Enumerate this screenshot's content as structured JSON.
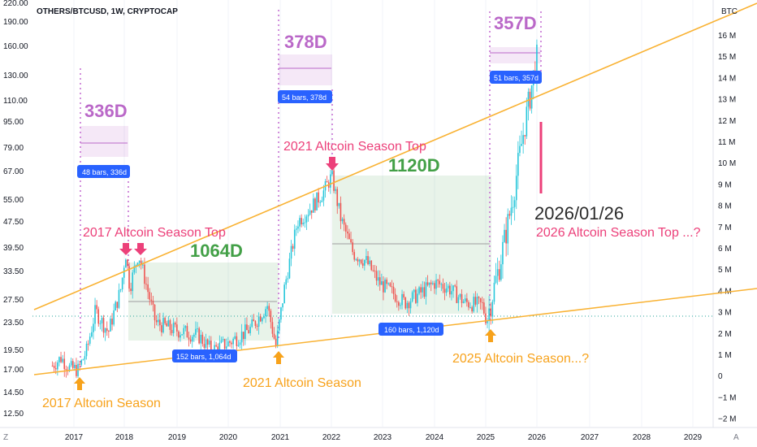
{
  "header": {
    "symbol_line": "OTHERS/BTCUSD, 1W, CRYPTOCAP",
    "right_unit": "BTC"
  },
  "footer": {
    "left_glyph": "Z",
    "right_glyph": "A"
  },
  "colors": {
    "up": "#26c6da",
    "down": "#ef5350",
    "pink": "#ec407a",
    "purple": "#ba68c8",
    "green": "#43a047",
    "orange": "#f7a21b",
    "trend": "#f9b233",
    "pill": "#2962ff"
  },
  "chart_data": {
    "type": "candlestick",
    "title": "OTHERS/BTCUSD, 1W, CRYPTOCAP",
    "y_scale": "log",
    "y_left_ticks": [
      "220.00",
      "190.00",
      "160.00",
      "130.00",
      "110.00",
      "95.00",
      "79.00",
      "67.00",
      "55.00",
      "47.50",
      "39.50",
      "33.50",
      "27.50",
      "23.50",
      "19.50",
      "17.00",
      "14.50",
      "12.50"
    ],
    "y_right_unit": "BTC",
    "y_right_ticks": [
      "16 M",
      "15 M",
      "14 M",
      "13 M",
      "12 M",
      "11 M",
      "10 M",
      "9 M",
      "8 M",
      "7 M",
      "6 M",
      "5 M",
      "4 M",
      "3 M",
      "2 M",
      "1 M",
      "0",
      "−1 M",
      "−2 M"
    ],
    "x_ticks": [
      "2017",
      "2018",
      "2019",
      "2020",
      "2021",
      "2022",
      "2023",
      "2024",
      "2025",
      "2026",
      "2027",
      "2028",
      "2029"
    ],
    "price_path": [
      [
        "2016-08",
        17.5
      ],
      [
        "2016-10",
        18.5
      ],
      [
        "2016-12",
        17.2
      ],
      [
        "2017-02",
        17.0
      ],
      [
        "2017-04",
        19.5
      ],
      [
        "2017-06",
        25.5
      ],
      [
        "2017-09",
        22.0
      ],
      [
        "2017-12",
        30.0
      ],
      [
        "2018-01",
        38.5
      ],
      [
        "2018-02",
        30.0
      ],
      [
        "2018-04",
        38.0
      ],
      [
        "2018-06",
        30.0
      ],
      [
        "2018-08",
        23.5
      ],
      [
        "2018-12",
        22.5
      ],
      [
        "2019-03",
        22.0
      ],
      [
        "2019-06",
        21.5
      ],
      [
        "2019-09",
        19.5
      ],
      [
        "2020-01",
        20.5
      ],
      [
        "2020-06",
        22.5
      ],
      [
        "2020-10",
        26.5
      ],
      [
        "2020-12",
        20.0
      ],
      [
        "2021-02",
        30.0
      ],
      [
        "2021-05",
        47.5
      ],
      [
        "2021-08",
        52.0
      ],
      [
        "2021-11",
        58.0
      ],
      [
        "2022-01",
        65.0
      ],
      [
        "2022-03",
        49.0
      ],
      [
        "2022-06",
        38.0
      ],
      [
        "2022-09",
        36.0
      ],
      [
        "2022-12",
        31.0
      ],
      [
        "2023-03",
        29.0
      ],
      [
        "2023-06",
        27.0
      ],
      [
        "2023-09",
        28.5
      ],
      [
        "2024-01",
        31.0
      ],
      [
        "2024-04",
        30.0
      ],
      [
        "2024-08",
        27.0
      ],
      [
        "2024-12",
        26.5
      ],
      [
        "2025-01",
        24.0
      ],
      [
        "2025-04",
        35.0
      ],
      [
        "2025-07",
        55.0
      ],
      [
        "2025-10",
        95.0
      ],
      [
        "2026-01",
        155.0
      ]
    ],
    "annotations": {
      "top_2017": "2017 Altcoin Season Top",
      "top_2021": "2021 Altcoin Season Top",
      "top_2026": "2026 Altcoin Season Top ...?",
      "season_2017": "2017 Altcoin Season",
      "season_2021": "2021 Altcoin Season",
      "season_2025": "2025 Altcoin Season...?",
      "date_2026": "2026/01/26",
      "d336": "336D",
      "d378": "378D",
      "d357": "357D",
      "d1064": "1064D",
      "d1120": "1120D",
      "pill_48": "48 bars, 336d",
      "pill_54": "54 bars, 378d",
      "pill_51": "51 bars, 357d",
      "pill_152": "152 bars, 1,064d",
      "pill_160": "160 bars, 1,120d"
    }
  }
}
